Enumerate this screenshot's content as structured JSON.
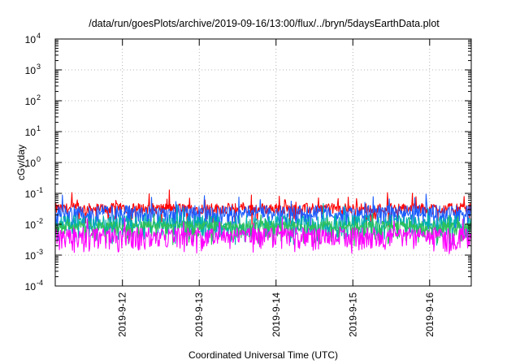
{
  "chart_data": {
    "type": "line",
    "title": "/data/run/goesPlots/archive/2019-09-16/13:00/flux/../bryn/5daysEarthData.plot",
    "xlabel": "Coordinated Universal Time (UTC)",
    "ylabel": "cGy/day",
    "y_scale": "log",
    "ylim": [
      0.0001,
      10000
    ],
    "y_ticks": [
      {
        "value": 0.0001,
        "base": "10",
        "exp": "-4"
      },
      {
        "value": 0.001,
        "base": "10",
        "exp": "-3"
      },
      {
        "value": 0.01,
        "base": "10",
        "exp": "-2"
      },
      {
        "value": 0.1,
        "base": "10",
        "exp": "-1"
      },
      {
        "value": 1,
        "base": "10",
        "exp": "0"
      },
      {
        "value": 10,
        "base": "10",
        "exp": "1"
      },
      {
        "value": 100,
        "base": "10",
        "exp": "2"
      },
      {
        "value": 1000,
        "base": "10",
        "exp": "3"
      },
      {
        "value": 10000,
        "base": "10",
        "exp": "4"
      }
    ],
    "xlim": [
      "2019-09-11T03:00",
      "2019-09-16T13:00"
    ],
    "x_ticks": [
      "2019-9-12",
      "2019-9-13",
      "2019-9-14",
      "2019-9-15",
      "2019-9-16"
    ],
    "x_tick_dates": [
      "2019-09-12",
      "2019-09-13",
      "2019-09-14",
      "2019-09-15",
      "2019-09-16"
    ],
    "grid": true,
    "series": [
      {
        "color": "#ff0000",
        "level": 0.032,
        "spread": 0.35,
        "dips": 0.05
      },
      {
        "color": "#1c5cff",
        "level": 0.026,
        "spread": 0.4,
        "dips": 0.25
      },
      {
        "color": "#00b0b0",
        "level": 0.012,
        "spread": 0.45,
        "dips": 0.3
      },
      {
        "color": "#2ec05a",
        "level": 0.009,
        "spread": 0.3,
        "dips": 0.2
      },
      {
        "color": "#ff00ff",
        "level": 0.0055,
        "spread": 0.3,
        "dips": 0.35
      }
    ]
  }
}
